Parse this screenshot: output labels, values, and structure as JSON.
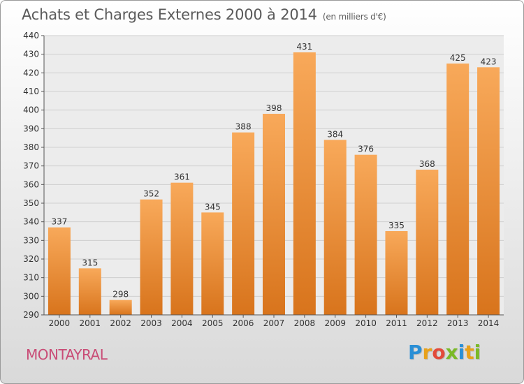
{
  "title": "Achats et Charges Externes 2000 à 2014",
  "title_unit": "(en milliers d'€)",
  "place": "MONTAYRAL",
  "logo": {
    "letters": [
      "P",
      "r",
      "o",
      "x",
      "i",
      "t",
      "i"
    ],
    "colors": [
      "#2a8fd6",
      "#e8a11a",
      "#e24b3b",
      "#7ab928",
      "#2a8fd6",
      "#e8a11a",
      "#7ab928"
    ]
  },
  "chart_data": {
    "type": "bar",
    "title": "Achats et Charges Externes 2000 à 2014",
    "categories": [
      "2000",
      "2001",
      "2002",
      "2003",
      "2004",
      "2005",
      "2006",
      "2007",
      "2008",
      "2009",
      "2010",
      "2011",
      "2012",
      "2013",
      "2014"
    ],
    "values": [
      337,
      315,
      298,
      352,
      361,
      345,
      388,
      398,
      431,
      384,
      376,
      335,
      368,
      425,
      423
    ],
    "ylim": [
      290,
      440
    ],
    "yticks": [
      290,
      300,
      310,
      320,
      330,
      340,
      350,
      360,
      370,
      380,
      390,
      400,
      410,
      420,
      430,
      440
    ],
    "grid": true,
    "bar_color_top": "#f8a95a",
    "bar_color_bottom": "#d8741c"
  }
}
